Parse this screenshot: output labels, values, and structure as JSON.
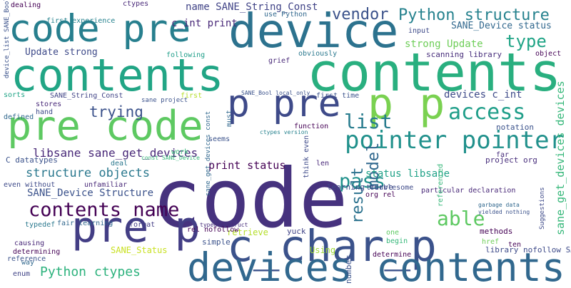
{
  "words": [
    "code",
    "contents",
    "contents",
    "device",
    "code pre",
    "p p",
    "p pre",
    "pre code",
    "c_char_p",
    "pre p",
    "devices contents",
    "pointer pointer",
    "access",
    "vendor",
    "Python structure",
    "type",
    "Update strong",
    "name SANE_String_Const",
    "c_int print",
    "list",
    "trying",
    "libsane sane_get_devices",
    "structure objects",
    "SANE_Device Structure",
    "contents name",
    "Python ctypes",
    "pass",
    "model",
    "result",
    "able",
    "status libsane",
    "devices c_int",
    "strong Update",
    "SANE_Device status",
    "print status",
    "sane_get_devices devices",
    "scanning library",
    "learning curve",
    "retrieve",
    "Using",
    "SANE_Status",
    "first experience",
    "dealing",
    "ctypes",
    "use Python",
    "input",
    "grief",
    "obviously",
    "following",
    "first time",
    "function",
    "len",
    "yuck",
    "simple",
    "format",
    "fair learning",
    "typedef",
    "determining",
    "causing",
    "reference",
    "enum",
    "library nofollow SANE",
    "methods",
    "notation",
    "project org",
    "object",
    "one",
    "begin",
    "href",
    "determine",
    "number",
    "org rel",
    "troublesome",
    "far",
    "C datatypes",
    "defined",
    "stores",
    "hand",
    "sorts",
    "SANE_String_Const",
    "sane project",
    "first",
    "must",
    "seems",
    "deal",
    "work",
    "unfamiliar",
    "even without",
    "rel nofollow",
    "think even",
    "way",
    "device_list SANE_Bool",
    "sane_get_devices const",
    "Suggestions",
    "ten",
    "yielded nothing",
    "garbage data",
    "particular declaration",
    "referenced",
    "const SANE_Device",
    "typedef struct",
    "SANE_Bool local_only",
    "ctypes version"
  ]
}
